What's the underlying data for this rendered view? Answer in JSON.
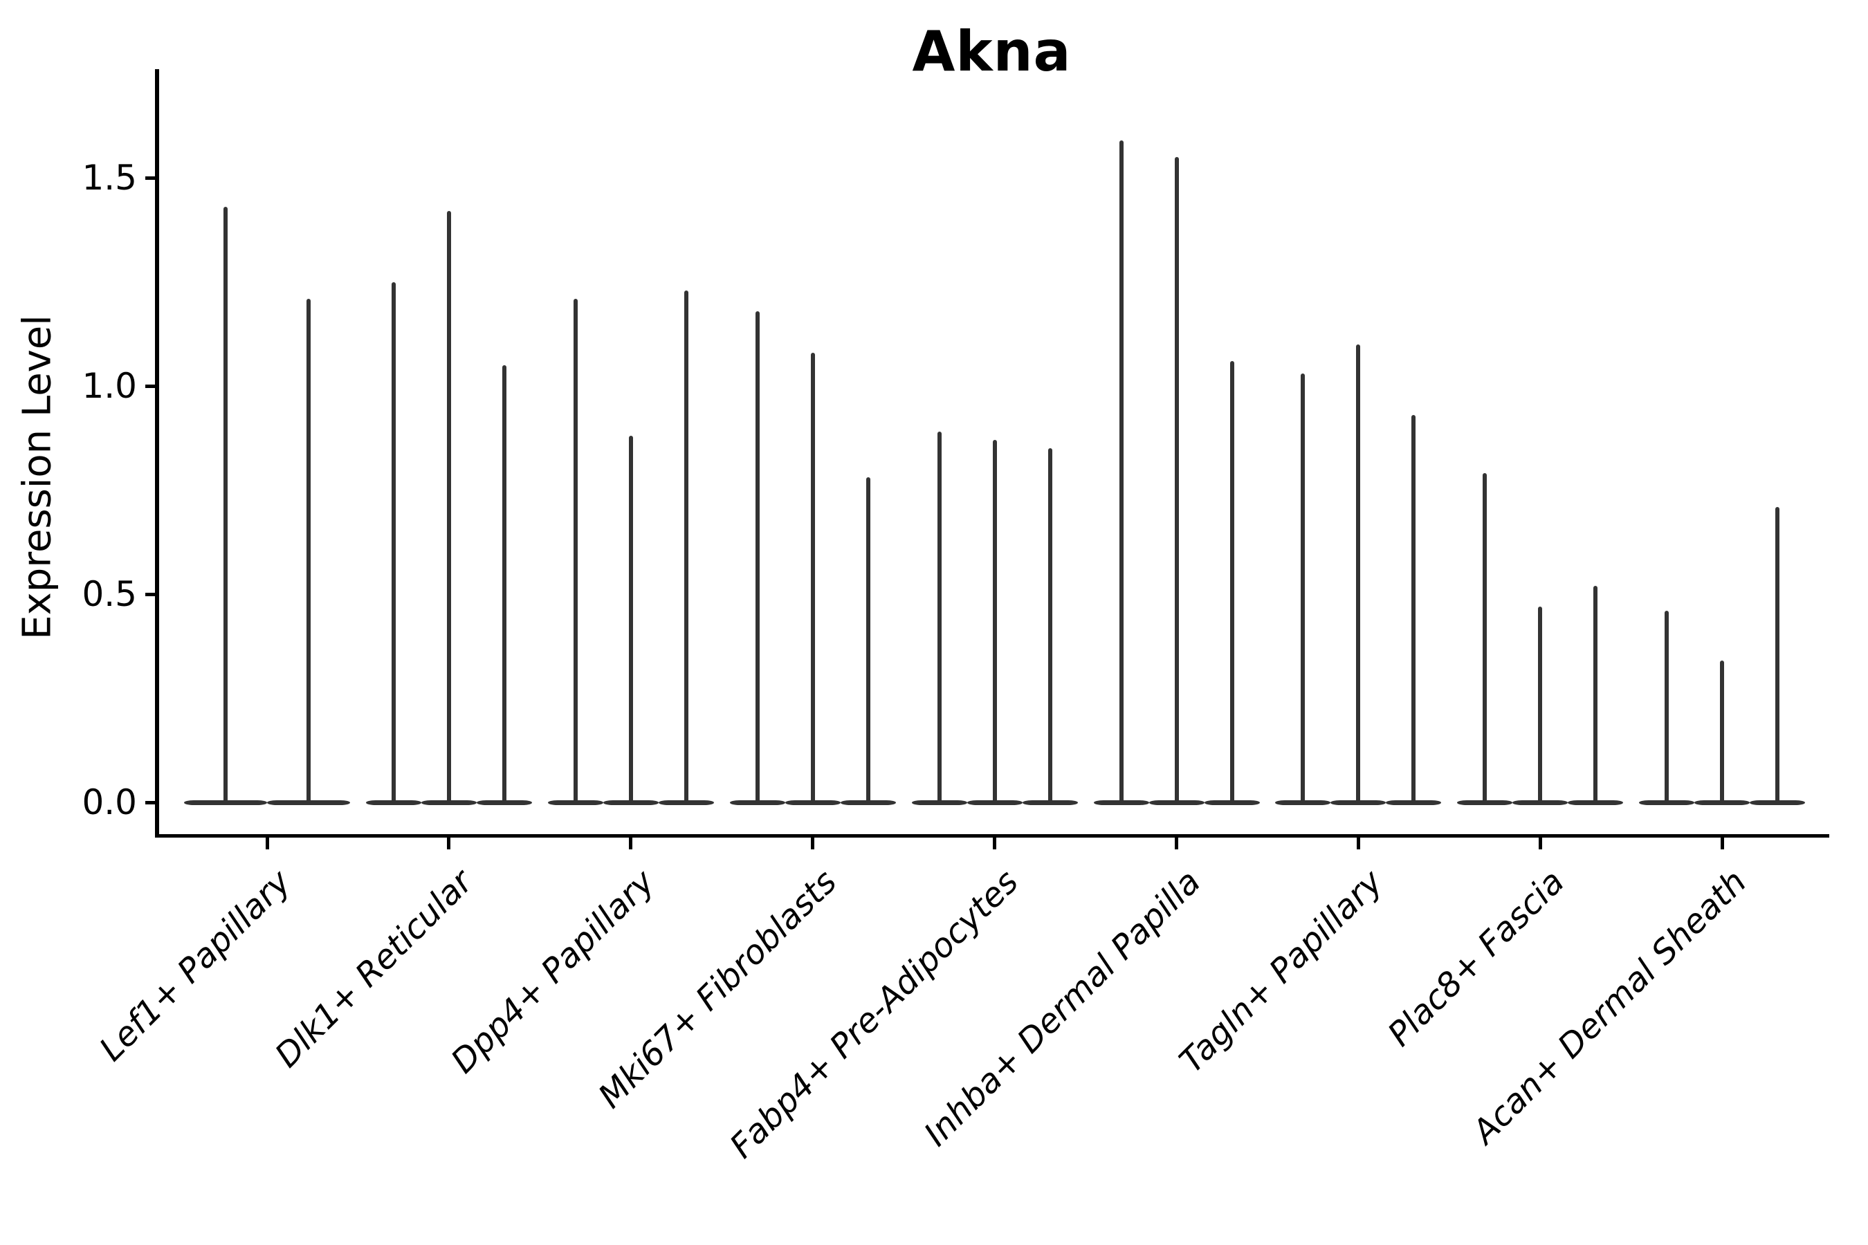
{
  "title": "Akna",
  "y_axis": {
    "label": "Expression Level",
    "tick_labels": [
      "0.0",
      "0.5",
      "1.0",
      "1.5"
    ]
  },
  "chart_data": {
    "type": "violin",
    "title": "Akna",
    "xlabel": "",
    "ylabel": "Expression Level",
    "ylim": [
      -0.08,
      1.76
    ],
    "yticks": [
      0.0,
      0.5,
      1.0,
      1.5
    ],
    "ytick_labels": [
      "0.0",
      "0.5",
      "1.0",
      "1.5"
    ],
    "grid": false,
    "legend_position": "none",
    "violin_color": "#333333",
    "axis_color": "#000000",
    "categories": [
      "Lef1+ Papillary",
      "Dlk1+ Reticular",
      "Dpp4+ Papillary",
      "Mki67+ Fibroblasts",
      "Fabp4+ Pre-Adipocytes",
      "Inhba+ Dermal Papilla",
      "Tagln+ Papillary",
      "Plac8+ Fascia",
      "Acan+ Dermal Sheath"
    ],
    "groups": [
      {
        "category": "Lef1+ Papillary",
        "violin_maxima": [
          1.43,
          1.21
        ]
      },
      {
        "category": "Dlk1+ Reticular",
        "violin_maxima": [
          1.25,
          1.42,
          1.05
        ]
      },
      {
        "category": "Dpp4+ Papillary",
        "violin_maxima": [
          1.21,
          0.88,
          1.23
        ]
      },
      {
        "category": "Mki67+ Fibroblasts",
        "violin_maxima": [
          1.18,
          1.08,
          0.78
        ]
      },
      {
        "category": "Fabp4+ Pre-Adipocytes",
        "violin_maxima": [
          0.89,
          0.87,
          0.85
        ]
      },
      {
        "category": "Inhba+ Dermal Papilla",
        "violin_maxima": [
          1.59,
          1.55,
          1.06
        ]
      },
      {
        "category": "Tagln+ Papillary",
        "violin_maxima": [
          1.03,
          1.1,
          0.93
        ]
      },
      {
        "category": "Plac8+ Fascia",
        "violin_maxima": [
          0.79,
          0.47,
          0.52
        ]
      },
      {
        "category": "Acan+ Dermal Sheath",
        "violin_maxima": [
          0.46,
          0.34,
          0.71
        ]
      }
    ]
  }
}
